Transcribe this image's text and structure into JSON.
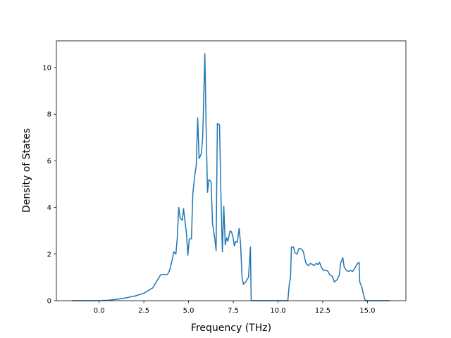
{
  "chart_data": {
    "type": "line",
    "xlabel": "Frequency (THz)",
    "ylabel": "Density of States",
    "color": "#1f77b4",
    "x": [
      -1.5,
      0,
      0.5,
      1,
      1.5,
      2,
      2.5,
      3,
      3.23,
      3.43,
      3.54,
      3.82,
      3.94,
      4.1,
      4.17,
      4.29,
      4.37,
      4.45,
      4.53,
      4.65,
      4.72,
      4.8,
      4.88,
      4.96,
      5.04,
      5.16,
      5.24,
      5.35,
      5.43,
      5.51,
      5.59,
      5.71,
      5.79,
      5.91,
      5.98,
      6.06,
      6.14,
      6.26,
      6.34,
      6.46,
      6.54,
      6.61,
      6.73,
      6.81,
      6.89,
      6.97,
      7.05,
      7.13,
      7.2,
      7.32,
      7.4,
      7.48,
      7.56,
      7.64,
      7.72,
      7.83,
      7.91,
      7.99,
      8.07,
      8.19,
      8.35,
      8.46,
      8.5,
      10.55,
      10.63,
      10.7,
      10.75,
      10.87,
      10.95,
      11.06,
      11.18,
      11.34,
      11.42,
      11.5,
      11.57,
      11.7,
      11.8,
      11.93,
      12.0,
      12.13,
      12.24,
      12.32,
      12.44,
      12.56,
      12.72,
      12.8,
      12.9,
      13.03,
      13.15,
      13.3,
      13.43,
      13.5,
      13.62,
      13.7,
      13.82,
      13.94,
      14.06,
      14.17,
      14.3,
      14.4,
      14.53,
      14.57,
      14.68,
      14.8,
      14.88,
      16.26
    ],
    "values": [
      0,
      0,
      0.02,
      0.06,
      0.12,
      0.2,
      0.32,
      0.55,
      0.85,
      1.1,
      1.13,
      1.12,
      1.3,
      1.8,
      2.1,
      2.0,
      2.7,
      4.0,
      3.55,
      3.45,
      3.95,
      3.4,
      2.9,
      1.95,
      2.65,
      2.65,
      4.6,
      5.4,
      5.8,
      7.85,
      6.1,
      6.3,
      7.0,
      10.6,
      7.5,
      4.65,
      5.2,
      5.1,
      3.3,
      2.7,
      2.15,
      7.6,
      7.55,
      4.5,
      2.1,
      4.05,
      2.4,
      2.7,
      2.55,
      3.0,
      2.95,
      2.75,
      2.35,
      2.55,
      2.5,
      3.1,
      2.4,
      1.0,
      0.7,
      0.8,
      1.0,
      2.3,
      0,
      0,
      0.7,
      1.0,
      2.3,
      2.3,
      2.05,
      2.0,
      2.25,
      2.2,
      2.1,
      1.8,
      1.6,
      1.5,
      1.6,
      1.55,
      1.5,
      1.6,
      1.55,
      1.65,
      1.4,
      1.3,
      1.3,
      1.25,
      1.1,
      1.05,
      0.8,
      0.9,
      1.1,
      1.6,
      1.85,
      1.45,
      1.3,
      1.25,
      1.3,
      1.25,
      1.4,
      1.55,
      1.65,
      0.8,
      0.6,
      0.2,
      0,
      0
    ],
    "xlim": [
      -2.39,
      17.15
    ],
    "ylim": [
      0,
      11.15
    ],
    "xticks": [
      {
        "value": 0,
        "label": "0.0"
      },
      {
        "value": 2.5,
        "label": "2.5"
      },
      {
        "value": 5,
        "label": "5.0"
      },
      {
        "value": 7.5,
        "label": "7.5"
      },
      {
        "value": 10,
        "label": "10.0"
      },
      {
        "value": 12.5,
        "label": "12.5"
      },
      {
        "value": 15,
        "label": "15.0"
      }
    ],
    "yticks": [
      0,
      2,
      4,
      6,
      8,
      10
    ]
  }
}
